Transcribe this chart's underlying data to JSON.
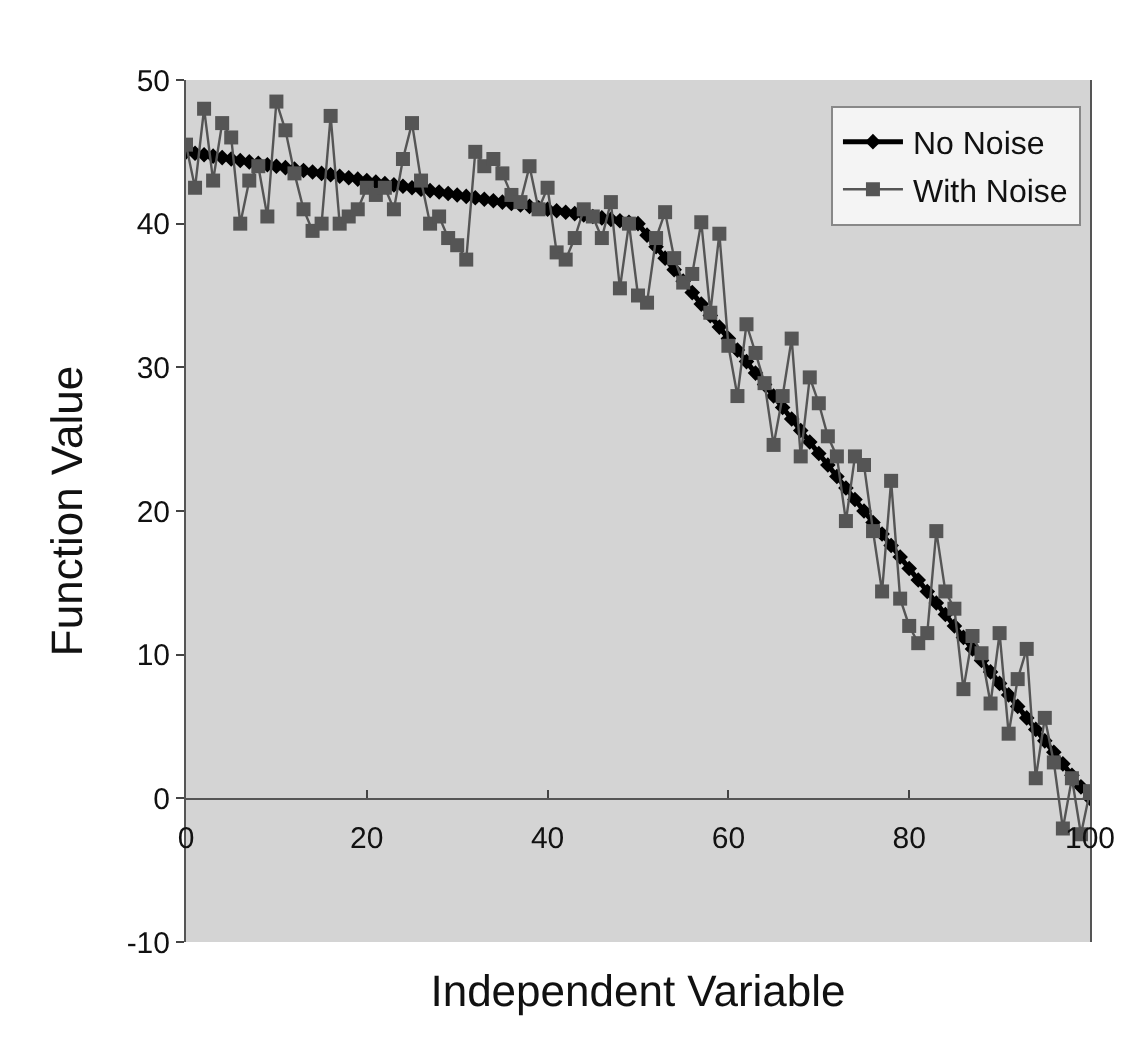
{
  "chart_data": {
    "type": "line",
    "xlabel": "Independent Variable",
    "ylabel": "Function Value",
    "x": [
      0,
      1,
      2,
      3,
      4,
      5,
      6,
      7,
      8,
      9,
      10,
      11,
      12,
      13,
      14,
      15,
      16,
      17,
      18,
      19,
      20,
      21,
      22,
      23,
      24,
      25,
      26,
      27,
      28,
      29,
      30,
      31,
      32,
      33,
      34,
      35,
      36,
      37,
      38,
      39,
      40,
      41,
      42,
      43,
      44,
      45,
      46,
      47,
      48,
      49,
      50,
      51,
      52,
      53,
      54,
      55,
      56,
      57,
      58,
      59,
      60,
      61,
      62,
      63,
      64,
      65,
      66,
      67,
      68,
      69,
      70,
      71,
      72,
      73,
      74,
      75,
      76,
      77,
      78,
      79,
      80,
      81,
      82,
      83,
      84,
      85,
      86,
      87,
      88,
      89,
      90,
      91,
      92,
      93,
      94,
      95,
      96,
      97,
      98,
      99,
      100
    ],
    "series": [
      {
        "name": "No Noise",
        "color": "#000000",
        "marker": "diamond",
        "values": [
          45,
          44.9,
          44.8,
          44.7,
          44.6,
          44.5,
          44.4,
          44.3,
          44.2,
          44.1,
          44,
          43.9,
          43.8,
          43.7,
          43.6,
          43.5,
          43.4,
          43.3,
          43.2,
          43.1,
          43,
          42.9,
          42.8,
          42.7,
          42.6,
          42.5,
          42.4,
          42.3,
          42.2,
          42.1,
          42,
          41.9,
          41.8,
          41.7,
          41.6,
          41.5,
          41.4,
          41.3,
          41.2,
          41.1,
          41,
          40.9,
          40.8,
          40.7,
          40.6,
          40.5,
          40.4,
          40.3,
          40.2,
          40.1,
          40,
          39.2,
          38.4,
          37.6,
          36.8,
          36,
          35.2,
          34.4,
          33.6,
          32.8,
          32,
          31.2,
          30.4,
          29.6,
          28.8,
          28,
          27.2,
          26.4,
          25.6,
          24.8,
          24,
          23.2,
          22.4,
          21.6,
          20.8,
          20,
          19.2,
          18.4,
          17.6,
          16.8,
          16,
          15.2,
          14.4,
          13.6,
          12.8,
          12,
          11.2,
          10.4,
          9.6,
          8.8,
          8,
          7.2,
          6.4,
          5.6,
          4.8,
          4,
          3.2,
          2.4,
          1.6,
          0.8,
          0
        ]
      },
      {
        "name": "With Noise",
        "color": "#555555",
        "marker": "square",
        "values": [
          45.5,
          42.5,
          48,
          43,
          47,
          46,
          40,
          43,
          44,
          40.5,
          48.5,
          46.5,
          43.5,
          41,
          39.5,
          40,
          47.5,
          40,
          40.5,
          41,
          42.5,
          42,
          42.5,
          41,
          44.5,
          47,
          43,
          40,
          40.5,
          39,
          38.5,
          37.5,
          45,
          44,
          44.5,
          43.5,
          42,
          41.5,
          44,
          41,
          42.5,
          38,
          37.5,
          39,
          41,
          40.5,
          39,
          41.5,
          35.5,
          40,
          35,
          34.5,
          39,
          40.8,
          37.6,
          35.9,
          36.5,
          40.1,
          33.8,
          39.3,
          31.5,
          28,
          33,
          31,
          28.9,
          24.6,
          28,
          32,
          23.8,
          29.3,
          27.5,
          25.2,
          23.8,
          19.3,
          23.8,
          23.2,
          18.6,
          14.4,
          22.1,
          13.9,
          12,
          10.8,
          11.5,
          18.6,
          14.4,
          13.2,
          7.6,
          11.3,
          10.1,
          6.6,
          11.5,
          4.5,
          8.3,
          10.4,
          1.4,
          5.6,
          2.5,
          -2.1,
          1.4,
          -2.5,
          0.5
        ]
      }
    ],
    "xlim": [
      0,
      100
    ],
    "xticks": [
      0,
      20,
      40,
      60,
      80,
      100
    ],
    "ylim": [
      -10,
      50
    ],
    "yticks": [
      -10,
      0,
      10,
      20,
      30,
      40,
      50
    ],
    "grid": false,
    "legend": "top right",
    "line_style": "solid"
  }
}
